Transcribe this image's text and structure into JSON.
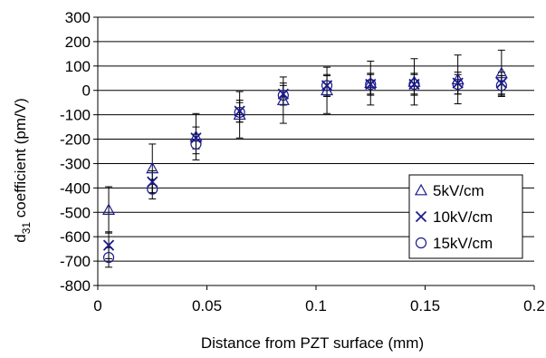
{
  "chart_data": {
    "type": "scatter",
    "title": "",
    "xlabel": "Distance from PZT surface (mm)",
    "ylabel_main": "d",
    "ylabel_sub": "31",
    "ylabel_rest": " coefficient (pm/V)",
    "xlim": [
      0,
      0.2
    ],
    "ylim": [
      -800,
      300
    ],
    "x_ticks": [
      0,
      0.05,
      0.1,
      0.15,
      0.2
    ],
    "x_tick_labels": [
      "0",
      "0.05",
      "0.1",
      "0.15",
      "0.2"
    ],
    "y_ticks": [
      300,
      200,
      100,
      0,
      -100,
      -200,
      -300,
      -400,
      -500,
      -600,
      -700,
      -800
    ],
    "y_tick_labels": [
      "300",
      "200",
      "100",
      "0",
      "-100",
      "-200",
      "-300",
      "-400",
      "-500",
      "-600",
      "-700",
      "-800"
    ],
    "grid": "horizontal",
    "legend_position": "bottom-right",
    "x": [
      0.005,
      0.025,
      0.045,
      0.065,
      0.085,
      0.105,
      0.125,
      0.145,
      0.165,
      0.185
    ],
    "series": [
      {
        "name": "5kV/cm",
        "marker": "triangle",
        "values": [
          -490,
          -320,
          -190,
          -100,
          -40,
          0,
          30,
          35,
          45,
          70
        ],
        "error": [
          95,
          100,
          95,
          95,
          95,
          95,
          90,
          95,
          100,
          95
        ]
      },
      {
        "name": "10kV/cm",
        "marker": "x",
        "values": [
          -635,
          -375,
          -195,
          -85,
          -15,
          20,
          25,
          25,
          30,
          30
        ],
        "error": [
          55,
          45,
          45,
          45,
          45,
          45,
          45,
          45,
          45,
          45
        ]
      },
      {
        "name": "15kV/cm",
        "marker": "circle",
        "values": [
          -685,
          -405,
          -220,
          -90,
          -20,
          20,
          25,
          25,
          25,
          20
        ],
        "error": [
          40,
          40,
          40,
          40,
          40,
          40,
          40,
          40,
          40,
          40
        ]
      }
    ],
    "colors": {
      "marker": "#1a1a8c",
      "error_bar": "#000000",
      "grid": "#000000",
      "axis": "#000000"
    }
  }
}
